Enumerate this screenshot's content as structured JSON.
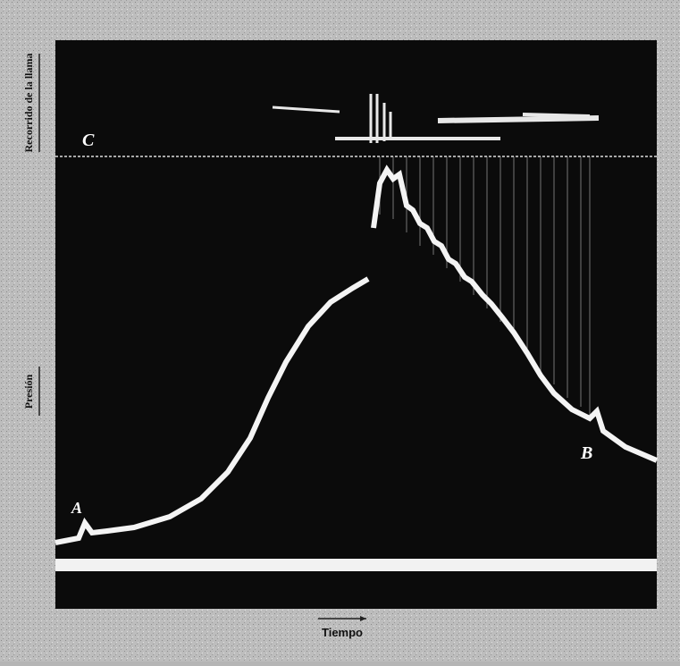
{
  "axis_labels": {
    "flame_travel": "Recorrido de la llama",
    "pressure": "Presión",
    "time": "Tiempo"
  },
  "point_labels": {
    "a": "A",
    "b": "B",
    "c": "C"
  }
}
